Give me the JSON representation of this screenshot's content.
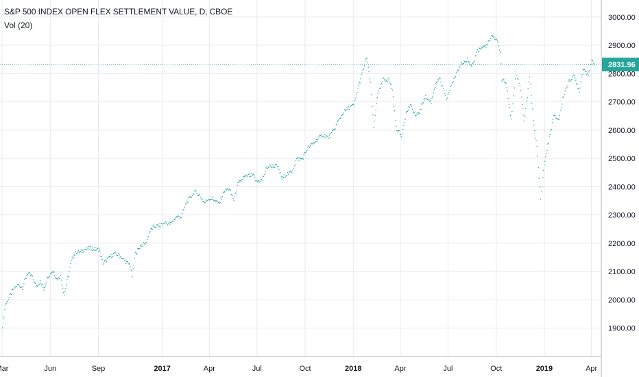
{
  "legend": {
    "title": "S&P 500 INDEX OPEN FLEX SETTLEMENT VALUE, D, CBOE",
    "indicator": "Vol (20)"
  },
  "price_tag": {
    "value": "2831.96",
    "color": "#26a69a"
  },
  "colors": {
    "series": "#26a69a",
    "grid": "#e6e9ee",
    "axis_text": "#131722",
    "last_price_line": "#26a69a"
  },
  "chart_data": {
    "type": "scatter",
    "title": "S&P 500 INDEX OPEN FLEX SETTLEMENT VALUE, D, CBOE",
    "xlabel": "",
    "ylabel": "",
    "ylim": [
      1800,
      3060
    ],
    "x_range": [
      "2016-03-01",
      "2019-04-08"
    ],
    "grid": true,
    "y_ticks": [
      "1900.00",
      "2000.00",
      "2100.00",
      "2200.00",
      "2300.00",
      "2400.00",
      "2500.00",
      "2600.00",
      "2700.00",
      "2800.00",
      "2900.00",
      "3000.00"
    ],
    "x_ticks": [
      {
        "label": "Mar",
        "date": "2016-03-01",
        "bold": false
      },
      {
        "label": "Jun",
        "date": "2016-06-01",
        "bold": false
      },
      {
        "label": "Sep",
        "date": "2016-09-01",
        "bold": false
      },
      {
        "label": "2017",
        "date": "2017-01-01",
        "bold": true
      },
      {
        "label": "Apr",
        "date": "2017-04-01",
        "bold": false
      },
      {
        "label": "Jul",
        "date": "2017-07-01",
        "bold": false
      },
      {
        "label": "Oct",
        "date": "2017-10-01",
        "bold": false
      },
      {
        "label": "2018",
        "date": "2018-01-01",
        "bold": true
      },
      {
        "label": "Apr",
        "date": "2018-04-01",
        "bold": false
      },
      {
        "label": "Jul",
        "date": "2018-07-01",
        "bold": false
      },
      {
        "label": "Oct",
        "date": "2018-10-01",
        "bold": false
      },
      {
        "label": "2019",
        "date": "2019-01-01",
        "bold": true
      },
      {
        "label": "Apr",
        "date": "2019-04-01",
        "bold": false
      }
    ],
    "last_value": 2831.96,
    "series": [
      {
        "points": [
          [
            "2016-03-01",
            1910
          ],
          [
            "2016-03-07",
            1985
          ],
          [
            "2016-03-15",
            2015
          ],
          [
            "2016-03-22",
            2040
          ],
          [
            "2016-03-31",
            2055
          ],
          [
            "2016-04-08",
            2045
          ],
          [
            "2016-04-18",
            2095
          ],
          [
            "2016-04-26",
            2085
          ],
          [
            "2016-05-04",
            2050
          ],
          [
            "2016-05-12",
            2065
          ],
          [
            "2016-05-19",
            2040
          ],
          [
            "2016-05-27",
            2085
          ],
          [
            "2016-06-06",
            2105
          ],
          [
            "2016-06-13",
            2075
          ],
          [
            "2016-06-20",
            2085
          ],
          [
            "2016-06-27",
            2020
          ],
          [
            "2016-07-05",
            2090
          ],
          [
            "2016-07-12",
            2150
          ],
          [
            "2016-07-20",
            2170
          ],
          [
            "2016-07-28",
            2170
          ],
          [
            "2016-08-05",
            2180
          ],
          [
            "2016-08-15",
            2185
          ],
          [
            "2016-08-25",
            2180
          ],
          [
            "2016-09-02",
            2180
          ],
          [
            "2016-09-09",
            2130
          ],
          [
            "2016-09-20",
            2150
          ],
          [
            "2016-09-30",
            2165
          ],
          [
            "2016-10-10",
            2160
          ],
          [
            "2016-10-20",
            2140
          ],
          [
            "2016-10-31",
            2125
          ],
          [
            "2016-11-04",
            2085
          ],
          [
            "2016-11-10",
            2165
          ],
          [
            "2016-11-21",
            2195
          ],
          [
            "2016-11-30",
            2200
          ],
          [
            "2016-12-08",
            2245
          ],
          [
            "2016-12-15",
            2260
          ],
          [
            "2016-12-28",
            2265
          ],
          [
            "2017-01-06",
            2275
          ],
          [
            "2017-01-16",
            2270
          ],
          [
            "2017-01-27",
            2295
          ],
          [
            "2017-02-06",
            2295
          ],
          [
            "2017-02-15",
            2345
          ],
          [
            "2017-02-24",
            2365
          ],
          [
            "2017-03-03",
            2385
          ],
          [
            "2017-03-13",
            2370
          ],
          [
            "2017-03-22",
            2345
          ],
          [
            "2017-03-31",
            2360
          ],
          [
            "2017-04-10",
            2355
          ],
          [
            "2017-04-19",
            2340
          ],
          [
            "2017-04-28",
            2385
          ],
          [
            "2017-05-08",
            2395
          ],
          [
            "2017-05-17",
            2355
          ],
          [
            "2017-05-25",
            2410
          ],
          [
            "2017-06-05",
            2435
          ],
          [
            "2017-06-14",
            2440
          ],
          [
            "2017-06-23",
            2440
          ],
          [
            "2017-06-29",
            2420
          ],
          [
            "2017-07-10",
            2425
          ],
          [
            "2017-07-19",
            2470
          ],
          [
            "2017-07-28",
            2475
          ],
          [
            "2017-08-08",
            2475
          ],
          [
            "2017-08-17",
            2430
          ],
          [
            "2017-08-25",
            2445
          ],
          [
            "2017-09-05",
            2455
          ],
          [
            "2017-09-14",
            2500
          ],
          [
            "2017-09-25",
            2500
          ],
          [
            "2017-10-04",
            2535
          ],
          [
            "2017-10-13",
            2550
          ],
          [
            "2017-10-24",
            2570
          ],
          [
            "2017-11-03",
            2585
          ],
          [
            "2017-11-14",
            2575
          ],
          [
            "2017-11-24",
            2600
          ],
          [
            "2017-12-04",
            2640
          ],
          [
            "2017-12-13",
            2665
          ],
          [
            "2017-12-22",
            2680
          ],
          [
            "2018-01-02",
            2690
          ],
          [
            "2018-01-09",
            2750
          ],
          [
            "2018-01-17",
            2800
          ],
          [
            "2018-01-26",
            2860
          ],
          [
            "2018-02-02",
            2765
          ],
          [
            "2018-02-08",
            2610
          ],
          [
            "2018-02-15",
            2720
          ],
          [
            "2018-02-26",
            2780
          ],
          [
            "2018-03-09",
            2780
          ],
          [
            "2018-03-16",
            2745
          ],
          [
            "2018-03-23",
            2610
          ],
          [
            "2018-04-02",
            2580
          ],
          [
            "2018-04-11",
            2660
          ],
          [
            "2018-04-19",
            2690
          ],
          [
            "2018-04-30",
            2650
          ],
          [
            "2018-05-08",
            2670
          ],
          [
            "2018-05-17",
            2720
          ],
          [
            "2018-05-29",
            2700
          ],
          [
            "2018-06-07",
            2770
          ],
          [
            "2018-06-15",
            2780
          ],
          [
            "2018-06-27",
            2710
          ],
          [
            "2018-07-06",
            2760
          ],
          [
            "2018-07-16",
            2800
          ],
          [
            "2018-07-26",
            2840
          ],
          [
            "2018-08-06",
            2850
          ],
          [
            "2018-08-15",
            2820
          ],
          [
            "2018-08-24",
            2880
          ],
          [
            "2018-09-04",
            2895
          ],
          [
            "2018-09-12",
            2900
          ],
          [
            "2018-09-21",
            2930
          ],
          [
            "2018-10-01",
            2925
          ],
          [
            "2018-10-08",
            2880
          ],
          [
            "2018-10-11",
            2780
          ],
          [
            "2018-10-19",
            2770
          ],
          [
            "2018-10-29",
            2640
          ],
          [
            "2018-11-07",
            2810
          ],
          [
            "2018-11-16",
            2740
          ],
          [
            "2018-11-23",
            2630
          ],
          [
            "2018-12-03",
            2790
          ],
          [
            "2018-12-10",
            2640
          ],
          [
            "2018-12-17",
            2540
          ],
          [
            "2018-12-24",
            2360
          ],
          [
            "2018-12-31",
            2480
          ],
          [
            "2019-01-08",
            2560
          ],
          [
            "2019-01-18",
            2650
          ],
          [
            "2019-01-28",
            2640
          ],
          [
            "2019-02-06",
            2725
          ],
          [
            "2019-02-15",
            2770
          ],
          [
            "2019-02-25",
            2795
          ],
          [
            "2019-03-08",
            2740
          ],
          [
            "2019-03-15",
            2820
          ],
          [
            "2019-03-25",
            2800
          ],
          [
            "2019-04-01",
            2845
          ],
          [
            "2019-04-05",
            2832
          ]
        ]
      }
    ]
  }
}
